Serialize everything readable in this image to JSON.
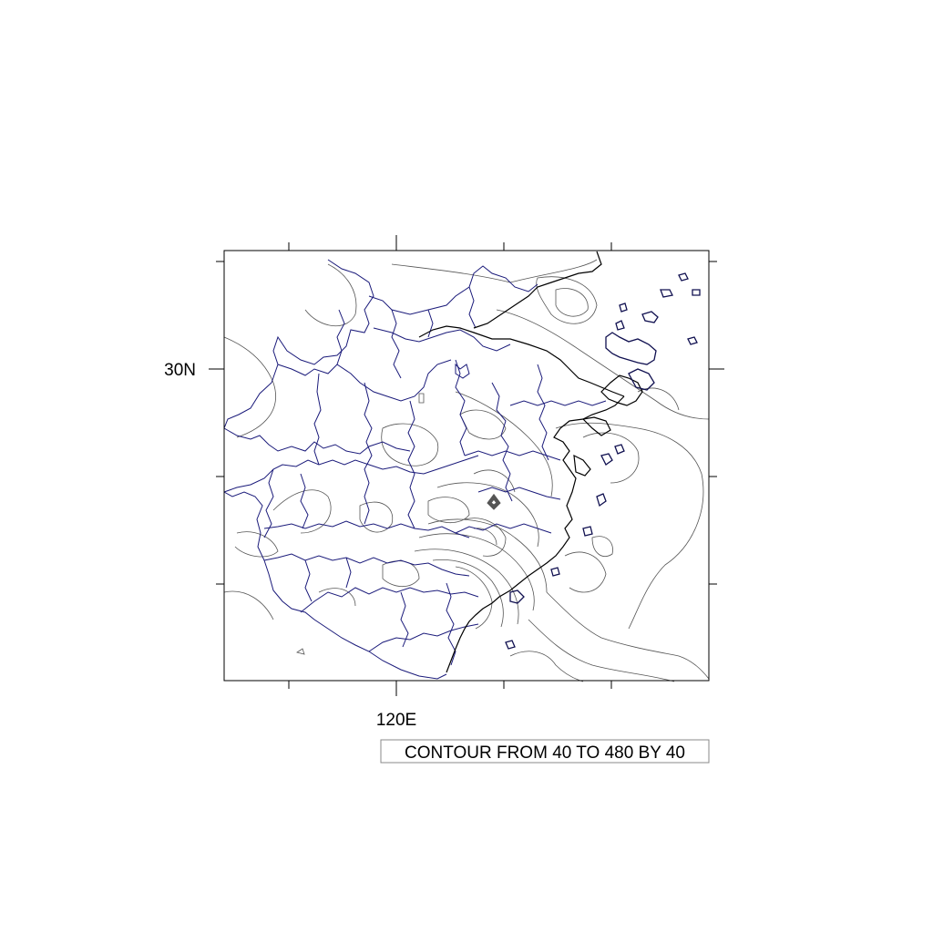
{
  "map": {
    "lat_label": "30N",
    "lon_label": "120E",
    "contour_info": "CONTOUR FROM 40 TO 480 BY 40",
    "contour_min": 40,
    "contour_max": 480,
    "contour_interval": 40,
    "colors": {
      "frame": "#000000",
      "boundary": "#1a1a7a",
      "coast": "#000000",
      "contour": "#555555",
      "peak": "#555555"
    }
  }
}
